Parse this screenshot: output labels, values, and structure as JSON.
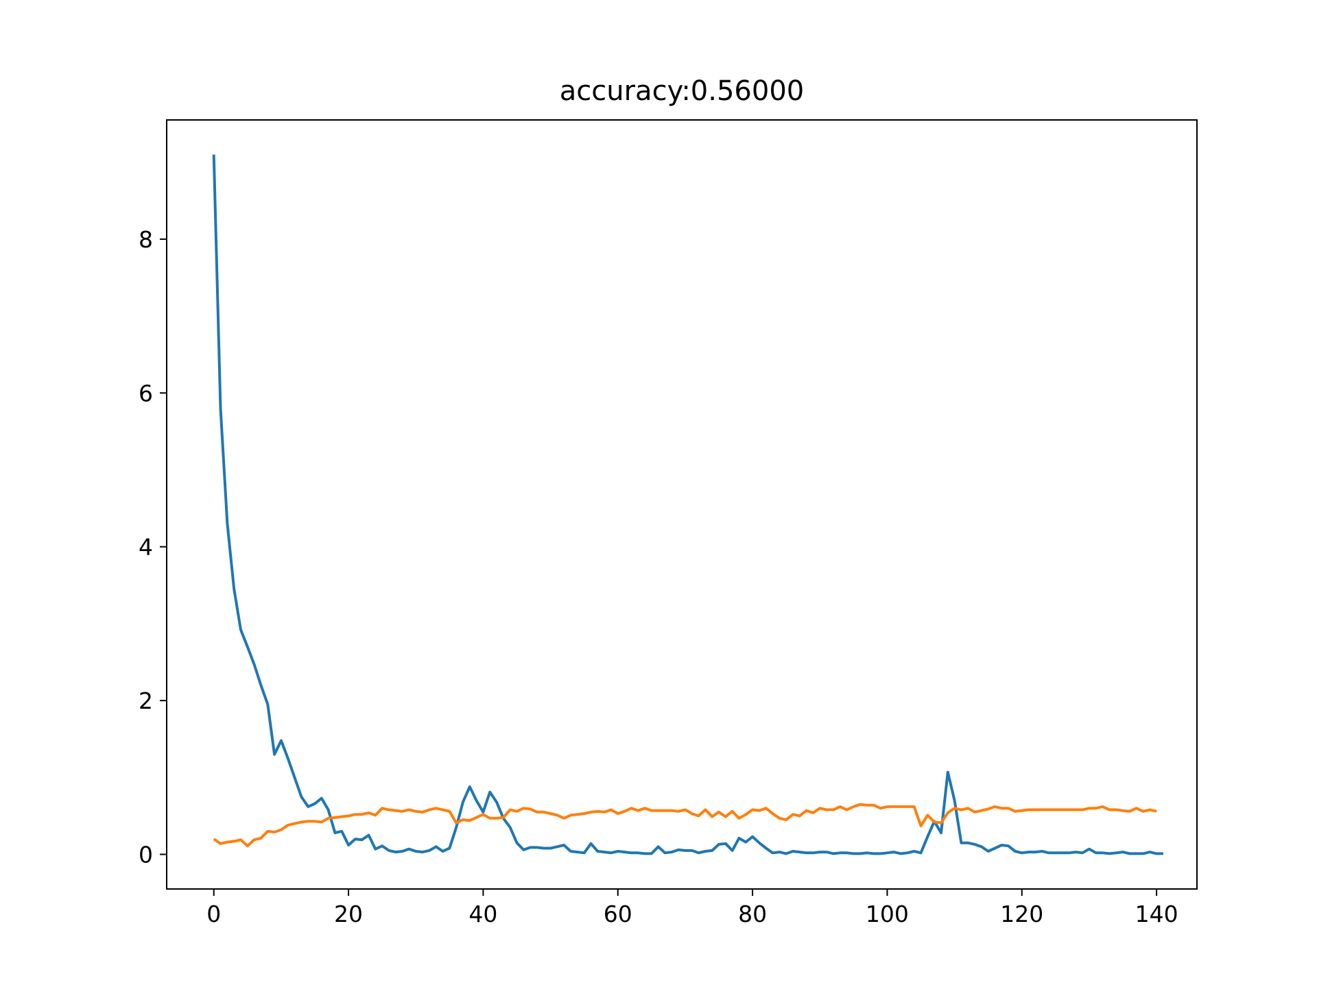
{
  "chart_data": {
    "type": "line",
    "title": "accuracy:0.56000",
    "xlabel": "",
    "ylabel": "",
    "xlim": [
      -7,
      146
    ],
    "ylim": [
      -0.45,
      9.55
    ],
    "xticks": [
      0,
      20,
      40,
      60,
      80,
      100,
      120,
      140
    ],
    "yticks": [
      0,
      2,
      4,
      6,
      8
    ],
    "grid": false,
    "legend": "none",
    "series": [
      {
        "color": "#1f77b4",
        "x_start": 0,
        "x_step": 1,
        "values": [
          9.1,
          5.8,
          4.3,
          3.45,
          2.92,
          2.7,
          2.47,
          2.2,
          1.95,
          1.3,
          1.48,
          1.25,
          1.0,
          0.75,
          0.62,
          0.66,
          0.73,
          0.58,
          0.28,
          0.3,
          0.12,
          0.2,
          0.19,
          0.25,
          0.07,
          0.11,
          0.05,
          0.03,
          0.04,
          0.07,
          0.04,
          0.03,
          0.05,
          0.1,
          0.04,
          0.08,
          0.35,
          0.68,
          0.88,
          0.7,
          0.55,
          0.81,
          0.68,
          0.47,
          0.35,
          0.15,
          0.06,
          0.09,
          0.09,
          0.08,
          0.08,
          0.1,
          0.12,
          0.04,
          0.03,
          0.02,
          0.14,
          0.04,
          0.03,
          0.02,
          0.04,
          0.03,
          0.02,
          0.02,
          0.01,
          0.01,
          0.1,
          0.02,
          0.03,
          0.06,
          0.05,
          0.05,
          0.02,
          0.04,
          0.05,
          0.13,
          0.14,
          0.05,
          0.21,
          0.16,
          0.23,
          0.15,
          0.08,
          0.02,
          0.03,
          0.01,
          0.04,
          0.03,
          0.02,
          0.02,
          0.03,
          0.03,
          0.01,
          0.02,
          0.02,
          0.01,
          0.01,
          0.02,
          0.01,
          0.01,
          0.02,
          0.03,
          0.01,
          0.02,
          0.04,
          0.02,
          0.23,
          0.43,
          0.28,
          1.07,
          0.7,
          0.15,
          0.15,
          0.13,
          0.1,
          0.04,
          0.08,
          0.12,
          0.11,
          0.04,
          0.02,
          0.03,
          0.03,
          0.04,
          0.02,
          0.02,
          0.02,
          0.02,
          0.03,
          0.02,
          0.07,
          0.02,
          0.02,
          0.01,
          0.02,
          0.03,
          0.01,
          0.01,
          0.01,
          0.03,
          0.01,
          0.01
        ]
      },
      {
        "color": "#ff7f0e",
        "x_start": 0,
        "x_step": 1,
        "values": [
          0.2,
          0.14,
          0.16,
          0.17,
          0.19,
          0.11,
          0.19,
          0.21,
          0.3,
          0.29,
          0.32,
          0.38,
          0.4,
          0.42,
          0.43,
          0.43,
          0.42,
          0.47,
          0.48,
          0.49,
          0.5,
          0.52,
          0.52,
          0.54,
          0.51,
          0.6,
          0.58,
          0.57,
          0.56,
          0.58,
          0.56,
          0.55,
          0.58,
          0.6,
          0.58,
          0.56,
          0.41,
          0.45,
          0.44,
          0.48,
          0.52,
          0.47,
          0.47,
          0.48,
          0.58,
          0.56,
          0.6,
          0.59,
          0.55,
          0.55,
          0.53,
          0.51,
          0.47,
          0.51,
          0.52,
          0.53,
          0.55,
          0.56,
          0.55,
          0.58,
          0.53,
          0.56,
          0.6,
          0.57,
          0.6,
          0.57,
          0.57,
          0.57,
          0.57,
          0.56,
          0.58,
          0.53,
          0.5,
          0.58,
          0.49,
          0.55,
          0.49,
          0.56,
          0.47,
          0.52,
          0.58,
          0.57,
          0.6,
          0.53,
          0.47,
          0.45,
          0.52,
          0.5,
          0.57,
          0.54,
          0.6,
          0.58,
          0.58,
          0.62,
          0.58,
          0.62,
          0.65,
          0.64,
          0.64,
          0.6,
          0.62,
          0.62,
          0.62,
          0.62,
          0.62,
          0.37,
          0.51,
          0.42,
          0.41,
          0.54,
          0.6,
          0.58,
          0.6,
          0.55,
          0.57,
          0.59,
          0.62,
          0.6,
          0.6,
          0.56,
          0.57,
          0.58,
          0.58,
          0.58,
          0.58,
          0.58,
          0.58,
          0.58,
          0.58,
          0.58,
          0.6,
          0.6,
          0.62,
          0.58,
          0.58,
          0.57,
          0.56,
          0.6,
          0.56,
          0.58,
          0.56
        ]
      }
    ]
  }
}
